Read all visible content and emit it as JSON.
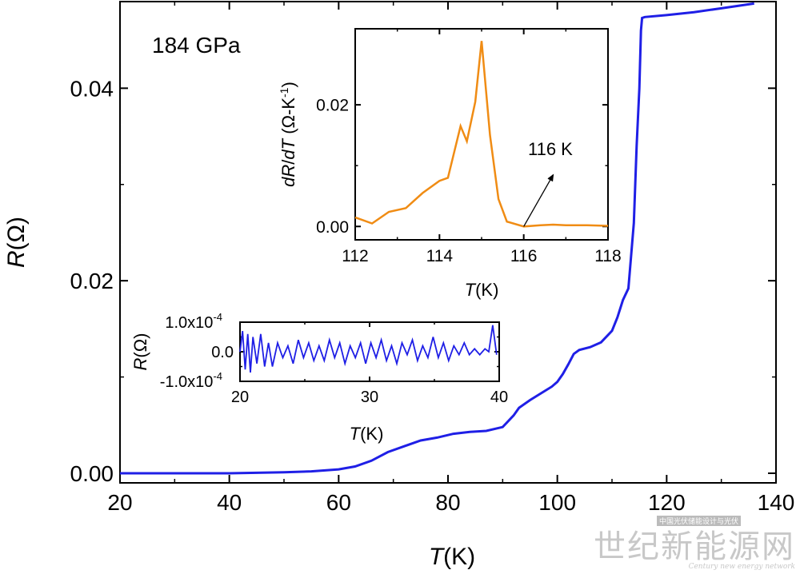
{
  "annotation": "184 GPa",
  "inset_annotation": "116 K",
  "colors": {
    "main": "#1f1fe6",
    "noise": "#1f1fe6",
    "deriv": "#f08c14",
    "axis": "#000000"
  },
  "watermark": {
    "chinese": "世纪新能源网",
    "english": "Century new energy network",
    "tag": "中国光伏储能设计与光伏"
  },
  "chart_data": [
    {
      "type": "line",
      "xlabel": "T(K)",
      "ylabel": "R(Ω)",
      "xlim": [
        20,
        140
      ],
      "ylim": [
        -0.001,
        0.049
      ],
      "xticks": [
        20,
        40,
        60,
        80,
        100,
        120,
        140
      ],
      "yticks": [
        0.0,
        0.02,
        0.04
      ],
      "ytick_labels": [
        "0.00",
        "0.02",
        "0.04"
      ],
      "series": [
        {
          "x": [
            20,
            30,
            40,
            50,
            55,
            60,
            63,
            66,
            69,
            72,
            75,
            78,
            81,
            84,
            87,
            90,
            92,
            93,
            95,
            97,
            99,
            100,
            101,
            102,
            103,
            104,
            106,
            108,
            110,
            111,
            112,
            113,
            114,
            114.5,
            115,
            115.3,
            115.5,
            116,
            120,
            125,
            130,
            136
          ],
          "y": [
            0.0,
            0.0,
            0.0,
            0.0001,
            0.0002,
            0.0004,
            0.0007,
            0.0013,
            0.0022,
            0.0028,
            0.0034,
            0.0037,
            0.0041,
            0.0043,
            0.0044,
            0.0048,
            0.006,
            0.0068,
            0.0076,
            0.0083,
            0.009,
            0.0095,
            0.0103,
            0.0113,
            0.0124,
            0.0128,
            0.0131,
            0.0136,
            0.0148,
            0.0162,
            0.018,
            0.0192,
            0.026,
            0.034,
            0.04,
            0.046,
            0.0473,
            0.0474,
            0.0476,
            0.0479,
            0.0483,
            0.0488
          ]
        }
      ]
    },
    {
      "type": "line",
      "xlabel": "T(K)",
      "ylabel": "dR/dT (Ω-K⁻¹)",
      "xlim": [
        112,
        118
      ],
      "ylim": [
        -0.0022,
        0.0325
      ],
      "xticks": [
        112,
        114,
        116,
        118
      ],
      "yticks": [
        0.0,
        0.02
      ],
      "ytick_labels": [
        "0.00",
        "0.02"
      ],
      "series": [
        {
          "x": [
            112,
            112.4,
            112.8,
            113.2,
            113.6,
            114.0,
            114.2,
            114.5,
            114.65,
            114.85,
            115.0,
            115.2,
            115.4,
            115.6,
            116.0,
            116.4,
            116.7,
            117.0,
            117.5,
            118
          ],
          "y": [
            0.0015,
            0.0005,
            0.0024,
            0.003,
            0.0055,
            0.0075,
            0.008,
            0.0165,
            0.014,
            0.0205,
            0.0305,
            0.015,
            0.0045,
            0.0008,
            0.0,
            0.0002,
            0.0003,
            0.0002,
            0.0002,
            0.0001
          ]
        }
      ],
      "arrow": {
        "from": [
          116.0,
          0.0
        ],
        "to": [
          116.7,
          0.0085
        ]
      }
    },
    {
      "type": "line",
      "xlabel": "T(K)",
      "ylabel": "R(Ω)",
      "xlim": [
        20,
        40
      ],
      "ylim": [
        -0.0001,
        0.0001
      ],
      "xticks": [
        20,
        30,
        40
      ],
      "yticks": [
        -0.0001,
        0.0,
        0.0001
      ],
      "ytick_labels": [
        "-1.0x10",
        "0.0",
        "1.0x10"
      ],
      "ytick_exponents": [
        "-4",
        "",
        "-4"
      ],
      "series": [
        {
          "x": [
            20.0,
            20.2,
            20.4,
            20.6,
            20.8,
            21.0,
            21.3,
            21.6,
            21.9,
            22.2,
            22.5,
            22.9,
            23.3,
            23.7,
            24.1,
            24.5,
            24.9,
            25.3,
            25.7,
            26.1,
            26.5,
            26.9,
            27.3,
            27.7,
            28.1,
            28.5,
            28.9,
            29.3,
            29.7,
            30.1,
            30.5,
            30.9,
            31.3,
            31.7,
            32.1,
            32.5,
            32.9,
            33.3,
            33.7,
            34.1,
            34.5,
            34.9,
            35.3,
            35.7,
            36.1,
            36.5,
            36.9,
            37.3,
            37.7,
            38.1,
            38.5,
            38.9,
            39.2,
            39.5,
            39.8
          ],
          "y": [
            0.0,
            7e-05,
            -6e-05,
            6e-05,
            -7e-05,
            5e-05,
            -4e-05,
            6e-05,
            -5e-05,
            3e-05,
            -5e-05,
            3e-05,
            -2e-05,
            2e-05,
            -4e-05,
            4e-05,
            -2e-05,
            3e-05,
            -3e-05,
            2e-05,
            -3e-05,
            4e-05,
            -2e-05,
            3e-05,
            -4e-05,
            2e-05,
            -2e-05,
            3e-05,
            -4e-05,
            3e-05,
            -2e-05,
            4e-05,
            -3e-05,
            2e-05,
            -4e-05,
            3e-05,
            -1e-05,
            4e-05,
            -3e-05,
            2e-05,
            -2e-05,
            5e-05,
            -2e-05,
            3e-05,
            -3e-05,
            2e-05,
            -1e-05,
            3e-05,
            -1e-05,
            1e-05,
            -1e-05,
            1e-05,
            0.0,
            9e-05,
            -1e-05
          ]
        }
      ]
    }
  ]
}
